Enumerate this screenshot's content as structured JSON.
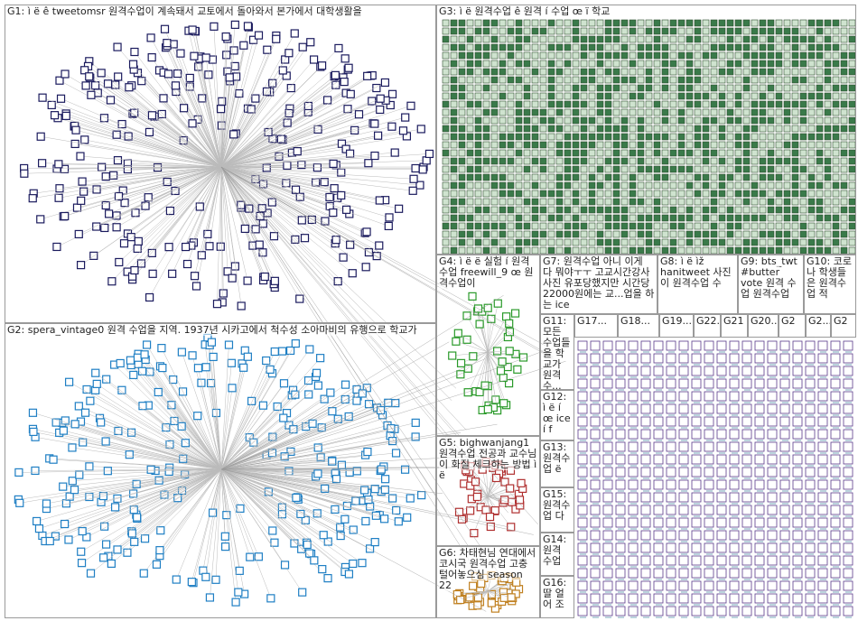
{
  "groups": [
    {
      "label": "G1: ì ë ê tweetomsr 원격수업이 계속돼서 교토에서 돌아와서 본가에서 대학생활을"
    },
    {
      "label": "G2: spera_vintage0 원격 수업을 지역. 1937년 시카고에서 척수성 소아마비의 유행으로 학교가"
    },
    {
      "label": "G3: ì ë 원격수업 ê 원격 í 수업 œ ï 학교"
    },
    {
      "label": "G4: ì ë ë 실험 í 원격 수업 freewill_9 œ 원격수업이"
    },
    {
      "label": "G5: bighwanjang1 원격수업 전공과 교수님이 화질 체크하는 방법 ì ë"
    },
    {
      "label": "G6: 차태현님 연대에서 코시국 원격수업 고충 털어놓으심 season 22"
    },
    {
      "label": "G7: 원격수업 아니 이게 다 뭐야ㅜㅜ 고교시간강사 사진 유포당했지만 시간당22000원에는 교...업을 하는 ice"
    },
    {
      "label": "G8: ì ë ìž hanitweet 사진이 원격수업 수"
    },
    {
      "label": "G9: bts_twt #butter vote 원격 수업 원격수업"
    },
    {
      "label": "G10: 코로나 학생들은 원격수업 적"
    },
    {
      "label": "G11: 모든 수업들을 학교가 원격 수..."
    },
    {
      "label": "G12: ì ë í œ ice í f"
    },
    {
      "label": "G13: 원격수 업 ë"
    },
    {
      "label": "G15: 원격수 업 다"
    },
    {
      "label": "G14: 원격 수업"
    },
    {
      "label": "G16: 딸 얼 어 조"
    },
    {
      "label": "G17..."
    },
    {
      "label": "G18..."
    },
    {
      "label": "G19..."
    },
    {
      "label": "G22..."
    },
    {
      "label": "G21"
    },
    {
      "label": "G20..."
    },
    {
      "label": "G2"
    },
    {
      "label": "G2..."
    },
    {
      "label": "G2"
    }
  ]
}
